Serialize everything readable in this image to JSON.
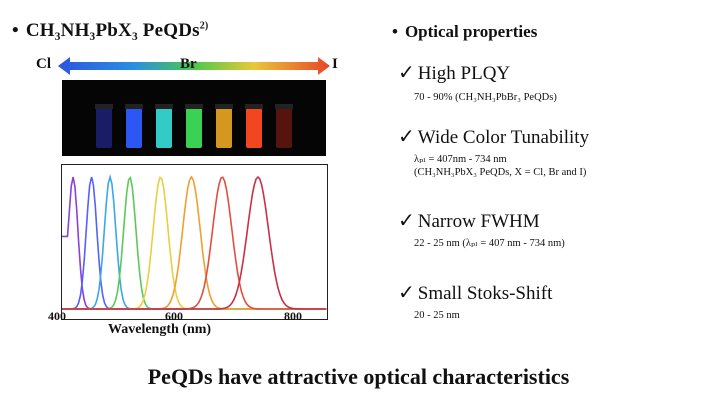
{
  "left_panel": {
    "bullet": "•",
    "title": "CH₃NH₃PbX₃ PeQDs",
    "title_sup": "2)",
    "gradient_labels": [
      "Cl",
      "Br",
      "I"
    ],
    "vial_colors": [
      "#1b1f6b",
      "#2f5cff",
      "#35d6d0",
      "#3ddc58",
      "#e0a020",
      "#ff4a22",
      "#5a1510"
    ],
    "spectrum_colors": [
      "#8a40e0",
      "#5560ff",
      "#3aa8e8",
      "#5cc85c",
      "#e8d040",
      "#f0a030",
      "#e05040",
      "#c8304a"
    ],
    "x_ticks": [
      "400",
      "600",
      "800"
    ],
    "xlabel": "Wavelength (nm)"
  },
  "right_panel": {
    "bullet": "•",
    "title": "Optical properties",
    "check": "✓",
    "items": [
      {
        "label": "High PLQY",
        "lines": [
          "70 - 90% (CH₃NH₃PbBr₃ PeQDs)"
        ]
      },
      {
        "label": "Wide Color Tunability",
        "lines": [
          "λₚₗ = 407nm - 734 nm",
          "(CH₃NH₃PbX₃ PeQDs, X = Cl, Br and I)"
        ]
      },
      {
        "label": "Narrow FWHM",
        "lines": [
          "22 - 25 nm (λₚₗ = 407 nm - 734 nm)"
        ]
      },
      {
        "label": "Small Stoks-Shift",
        "lines": [
          "20 - 25 nm"
        ]
      }
    ]
  },
  "footer": "PeQDs have attractive optical characteristics"
}
